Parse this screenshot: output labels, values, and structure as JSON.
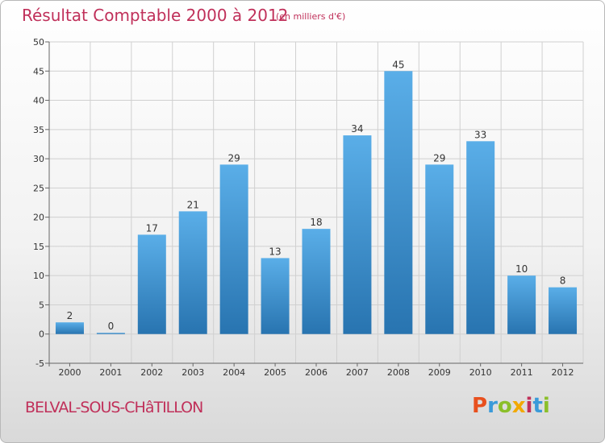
{
  "header": {
    "title": "Résultat Comptable 2000 à 2012",
    "subtitle": "(en milliers d'€)"
  },
  "footer": {
    "town": "BELVAL-SOUS-CHâTILLON",
    "brand_letters": [
      "P",
      "r",
      "o",
      "x",
      "i",
      "t",
      "i"
    ],
    "brand_colors": [
      "#e8501e",
      "#3a9ad9",
      "#8bbf2a",
      "#f2a900",
      "#c0305a",
      "#3a9ad9",
      "#8bbf2a"
    ]
  },
  "colors": {
    "bar_top": "#5aaee8",
    "bar_bottom": "#2874b0",
    "grid": "#d0d0d0",
    "accent": "#c0305a"
  },
  "chart_data": {
    "type": "bar",
    "title": "Résultat Comptable 2000 à 2012",
    "xlabel": "",
    "ylabel": "",
    "categories": [
      "2000",
      "2001",
      "2002",
      "2003",
      "2004",
      "2005",
      "2006",
      "2007",
      "2008",
      "2009",
      "2010",
      "2011",
      "2012"
    ],
    "values": [
      2,
      0,
      17,
      21,
      29,
      13,
      18,
      34,
      45,
      29,
      33,
      10,
      8
    ],
    "value_labels": [
      "2",
      "0",
      "17",
      "21",
      "29",
      "13",
      "18",
      "34",
      "45",
      "29",
      "33",
      "10",
      "8"
    ],
    "ylim": [
      -5,
      50
    ],
    "yticks": [
      -5,
      0,
      5,
      10,
      15,
      20,
      25,
      30,
      35,
      40,
      45,
      50
    ],
    "ytick_labels": [
      "-5",
      "0",
      "5",
      "10",
      "15",
      "20",
      "25",
      "30",
      "35",
      "40",
      "45",
      "50"
    ],
    "grid": true
  }
}
